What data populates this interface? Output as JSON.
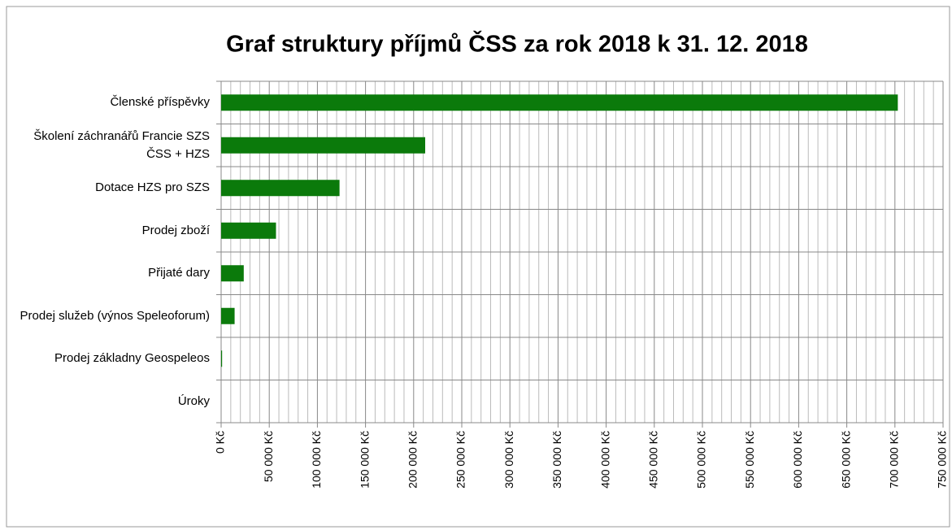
{
  "chart_data": {
    "type": "barh",
    "title": "Graf struktury příjmů ČSS za rok 2018 k 31. 12. 2018",
    "categories": [
      "Členské příspěvky",
      "Školení záchranářů Francie SZS ČSS + HZS",
      "Dotace HZS pro SZS",
      "Prodej zboží",
      "Přijaté dary",
      "Prodej služeb  (výnos Speleoforum)",
      "Prodej základny Geospeleos",
      "Úroky"
    ],
    "values": [
      703000,
      212000,
      123000,
      57000,
      23500,
      14000,
      1000,
      0
    ],
    "color": "#0b7a0b",
    "xlim": [
      0,
      750000
    ],
    "xticks": [
      {
        "value": 0,
        "label": "0 Kč"
      },
      {
        "value": 50000,
        "label": "50 000 Kč"
      },
      {
        "value": 100000,
        "label": "100 000 Kč"
      },
      {
        "value": 150000,
        "label": "150 000 Kč"
      },
      {
        "value": 200000,
        "label": "200 000 Kč"
      },
      {
        "value": 250000,
        "label": "250 000 Kč"
      },
      {
        "value": 300000,
        "label": "300 000 Kč"
      },
      {
        "value": 350000,
        "label": "350 000 Kč"
      },
      {
        "value": 400000,
        "label": "400 000 Kč"
      },
      {
        "value": 450000,
        "label": "450 000 Kč"
      },
      {
        "value": 500000,
        "label": "500 000 Kč"
      },
      {
        "value": 550000,
        "label": "550 000 Kč"
      },
      {
        "value": 600000,
        "label": "600 000 Kč"
      },
      {
        "value": 650000,
        "label": "650 000 Kč"
      },
      {
        "value": 700000,
        "label": "700 000 Kč"
      },
      {
        "value": 750000,
        "label": "750 000 Kč"
      }
    ],
    "xminorticks": [
      10000,
      20000,
      30000,
      40000,
      60000,
      70000,
      80000,
      90000,
      110000,
      120000,
      130000,
      140000,
      160000,
      170000,
      180000,
      190000,
      210000,
      220000,
      230000,
      240000,
      260000,
      270000,
      280000,
      290000,
      310000,
      320000,
      330000,
      340000,
      360000,
      370000,
      380000,
      390000,
      410000,
      420000,
      430000,
      440000,
      460000,
      470000,
      480000,
      490000,
      510000,
      520000,
      530000,
      540000,
      560000,
      570000,
      580000,
      590000,
      610000,
      620000,
      630000,
      640000,
      660000,
      670000,
      680000,
      690000,
      710000,
      720000,
      730000,
      740000
    ],
    "grid": true
  }
}
